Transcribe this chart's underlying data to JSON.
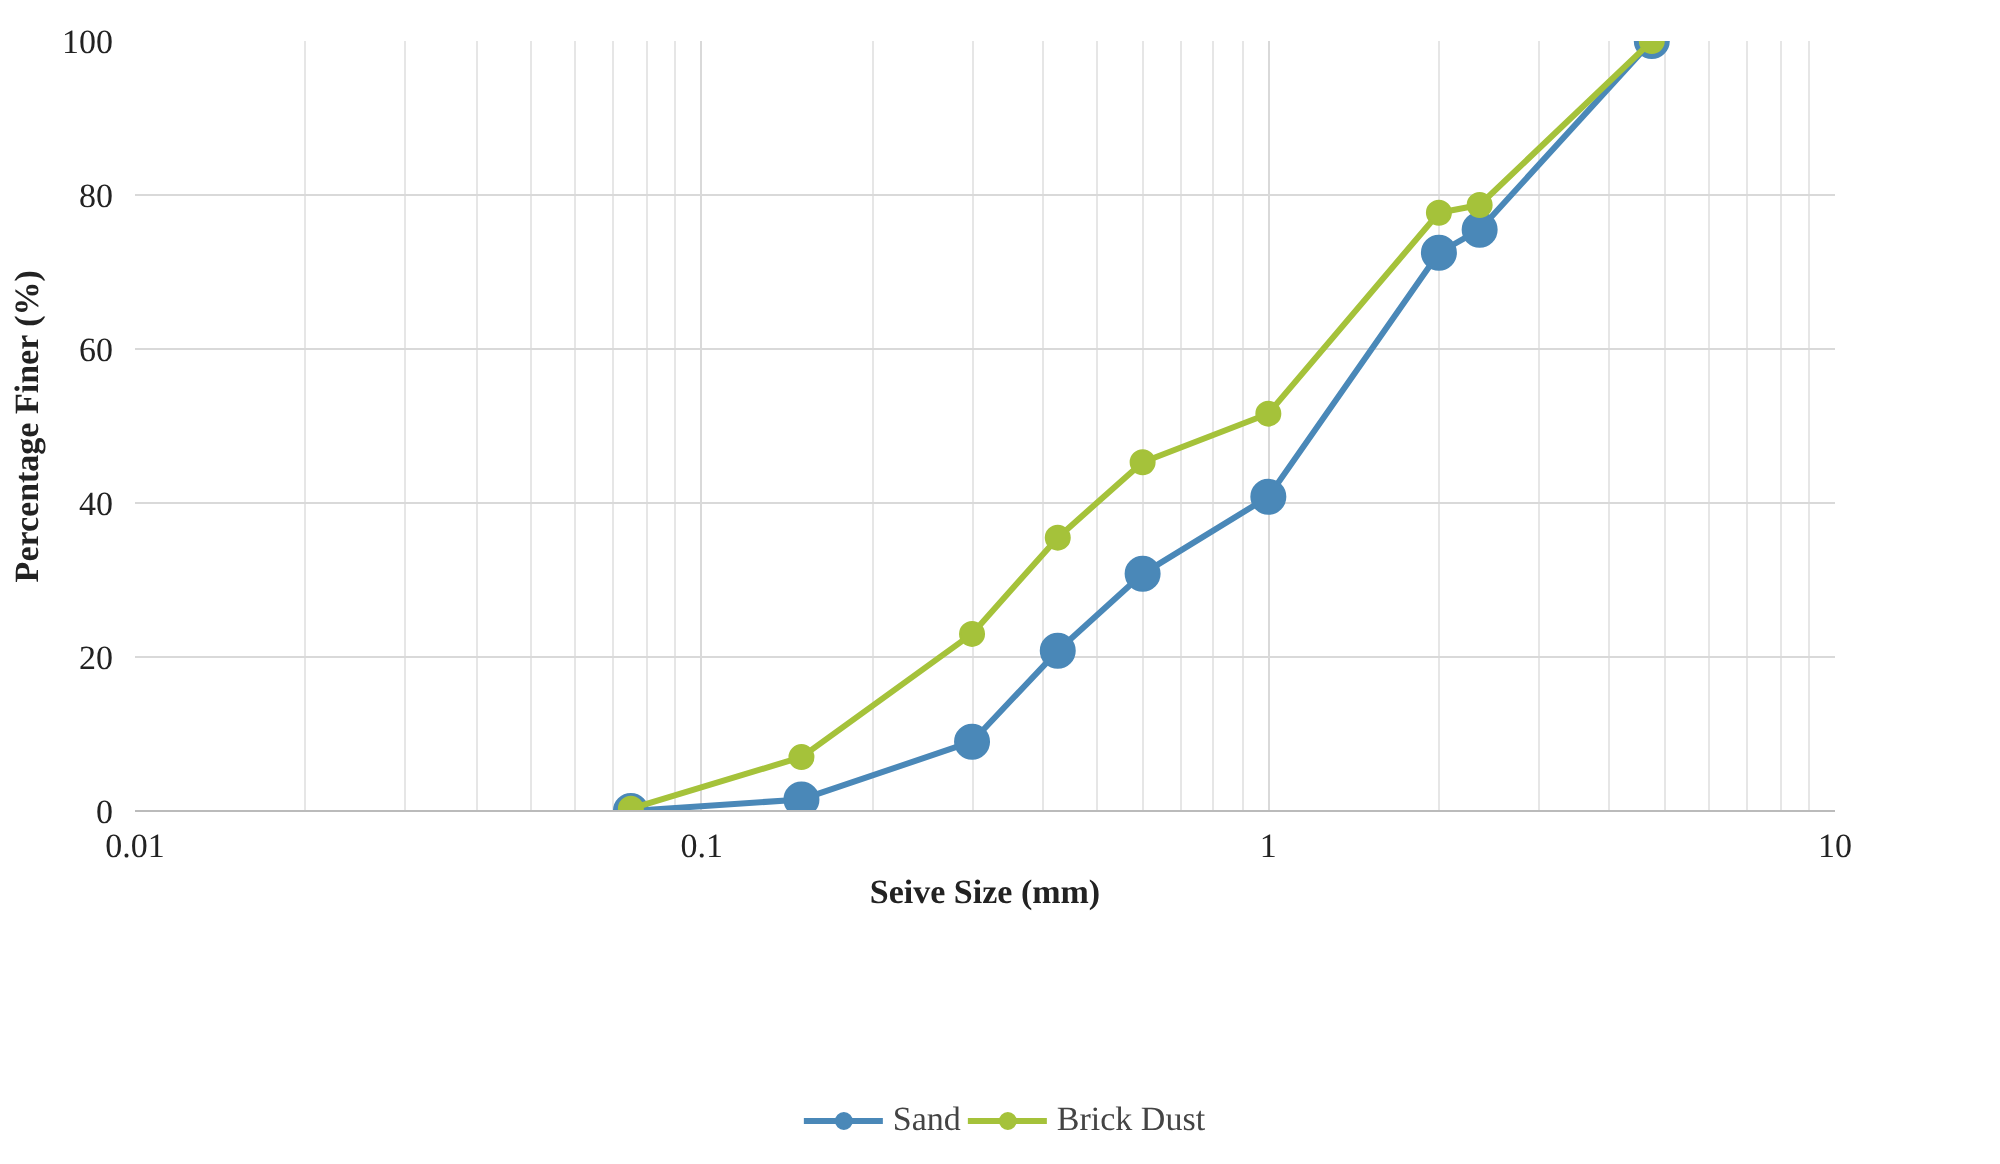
{
  "chart_data": {
    "type": "line",
    "xlabel": "Seive Size (mm)",
    "ylabel": "Percentage Finer (%)",
    "x": [
      0.075,
      0.15,
      0.3,
      0.425,
      0.6,
      1.0,
      2.0,
      2.36,
      4.75
    ],
    "series": [
      {
        "name": "Sand",
        "color": "#4a88b8",
        "values": [
          0,
          1.5,
          9,
          20.8,
          30.8,
          40.8,
          72.5,
          75.5,
          100
        ]
      },
      {
        "name": "Brick Dust",
        "color": "#a5c23a",
        "values": [
          0.3,
          7,
          23,
          35.5,
          45.3,
          51.6,
          77.7,
          78.7,
          100
        ]
      }
    ],
    "log": "x",
    "xlim": [
      0.01,
      10
    ],
    "xticks": [
      0.01,
      0.1,
      1,
      10
    ],
    "ylim": [
      0,
      100
    ],
    "yticks": [
      0,
      20,
      40,
      60,
      80,
      100
    ],
    "grid": true,
    "legend": "bottom",
    "marker": "circle",
    "line_style": "solid"
  }
}
